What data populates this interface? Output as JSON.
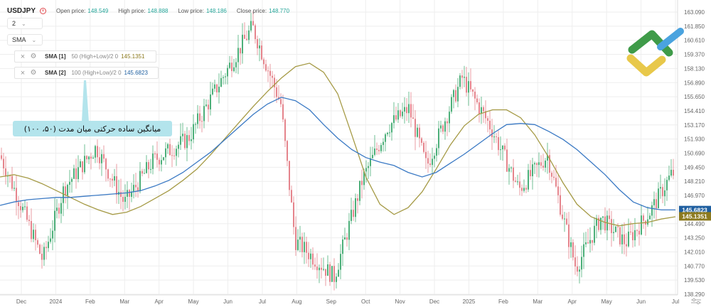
{
  "header": {
    "symbol": "USDJPY",
    "ohlc": [
      {
        "label": "Open price:",
        "value": "148.549"
      },
      {
        "label": "High price:",
        "value": "148.888"
      },
      {
        "label": "Low price:",
        "value": "148.186"
      },
      {
        "label": "Close price:",
        "value": "148.770"
      }
    ],
    "interval": "2",
    "indicator_type": "SMA"
  },
  "indicators": [
    {
      "name": "SMA [1]",
      "params": "50 (High+Low)/2 0",
      "value": "145.1351",
      "color": "#8c7a1f"
    },
    {
      "name": "SMA [2]",
      "params": "100 (High+Low)/2 0",
      "value": "145.6823",
      "color": "#1f5fa0"
    }
  ],
  "callout": {
    "text": "میانگین ساده حرکتی میان مدت (۵۰، ۱۰۰)"
  },
  "colors": {
    "up": "#4caf79",
    "down": "#e5848c",
    "sma50": "#a59a45",
    "sma100": "#3a79c4",
    "grid": "#eeeeee",
    "axis_text": "#666666"
  },
  "chart_data": {
    "type": "candlestick",
    "title": "USDJPY",
    "x_labels": [
      "Dec",
      "2024",
      "Feb",
      "Mar",
      "Apr",
      "May",
      "Jun",
      "Jul",
      "Aug",
      "Sep",
      "Oct",
      "Nov",
      "Dec",
      "2025",
      "Feb",
      "Mar",
      "Apr",
      "May",
      "Jun",
      "Jul"
    ],
    "y_ticks": [
      "163.090",
      "161.850",
      "160.610",
      "159.370",
      "158.130",
      "156.890",
      "155.650",
      "154.410",
      "153.170",
      "151.930",
      "150.690",
      "149.450",
      "148.210",
      "146.970",
      "145.730",
      "144.490",
      "143.250",
      "142.010",
      "140.770",
      "139.530",
      "138.290"
    ],
    "ylim": [
      138.29,
      163.09
    ],
    "price_markers": [
      {
        "label": "145.6823",
        "value": 145.6823,
        "color": "#1f5fa0"
      },
      {
        "label": "145.1351",
        "value": 145.1351,
        "color": "#8c7a1f"
      }
    ],
    "series": [
      {
        "name": "SMA [1]",
        "values": [
          148.6,
          148.8,
          148.5,
          148.0,
          147.4,
          146.8,
          146.2,
          145.7,
          145.3,
          145.5,
          146.0,
          146.7,
          147.4,
          148.3,
          149.3,
          150.6,
          152.0,
          153.4,
          154.8,
          156.1,
          157.3,
          158.3,
          158.6,
          157.8,
          155.9,
          152.3,
          148.6,
          146.2,
          145.3,
          145.9,
          147.3,
          149.3,
          151.4,
          153.1,
          154.1,
          154.5,
          154.5,
          153.8,
          152.3,
          150.3,
          148.1,
          146.2,
          145.1,
          144.6,
          144.3,
          144.5,
          144.6,
          144.9,
          145.1
        ]
      },
      {
        "name": "SMA [2]",
        "values": [
          146.1,
          146.4,
          146.6,
          146.7,
          146.8,
          146.8,
          146.9,
          147.0,
          147.1,
          147.2,
          147.4,
          147.8,
          148.3,
          149.0,
          149.9,
          150.8,
          151.9,
          153.0,
          154.1,
          155.0,
          155.6,
          155.3,
          154.5,
          153.2,
          152.0,
          151.0,
          150.3,
          149.9,
          149.6,
          149.0,
          148.6,
          149.0,
          149.8,
          150.6,
          151.5,
          152.4,
          153.2,
          153.3,
          153.2,
          152.6,
          151.9,
          151.0,
          149.9,
          148.8,
          147.5,
          146.4,
          145.9,
          145.7,
          145.7
        ]
      }
    ]
  }
}
